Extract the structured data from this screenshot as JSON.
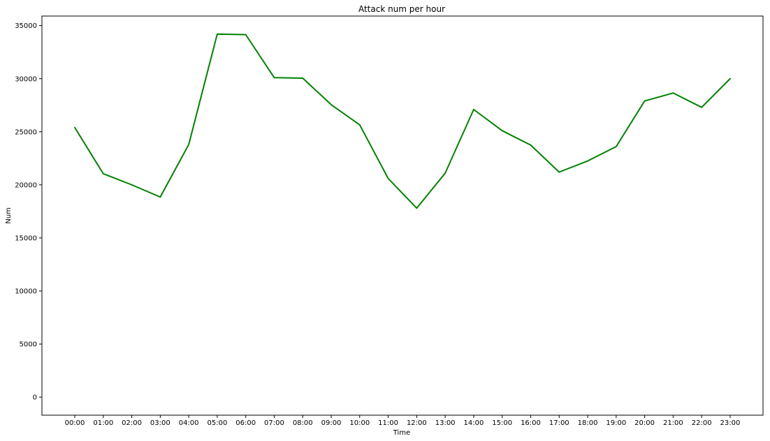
{
  "chart_data": {
    "type": "line",
    "title": "Attack num per hour",
    "xlabel": "Time",
    "ylabel": "Num",
    "categories": [
      "00:00",
      "01:00",
      "02:00",
      "03:00",
      "04:00",
      "05:00",
      "06:00",
      "07:00",
      "08:00",
      "09:00",
      "10:00",
      "11:00",
      "12:00",
      "13:00",
      "14:00",
      "15:00",
      "16:00",
      "17:00",
      "18:00",
      "19:00",
      "20:00",
      "21:00",
      "22:00",
      "23:00"
    ],
    "values": [
      25400,
      21050,
      20000,
      18850,
      23800,
      34200,
      34150,
      30100,
      30050,
      27550,
      25650,
      20600,
      17800,
      21100,
      27100,
      25100,
      23750,
      21200,
      22250,
      23600,
      27900,
      28650,
      27300,
      30000
    ],
    "yticks": [
      0,
      5000,
      10000,
      15000,
      20000,
      25000,
      30000,
      35000
    ],
    "ylim": [
      -1700,
      35900
    ],
    "grid": false,
    "line_color": "#008000"
  }
}
